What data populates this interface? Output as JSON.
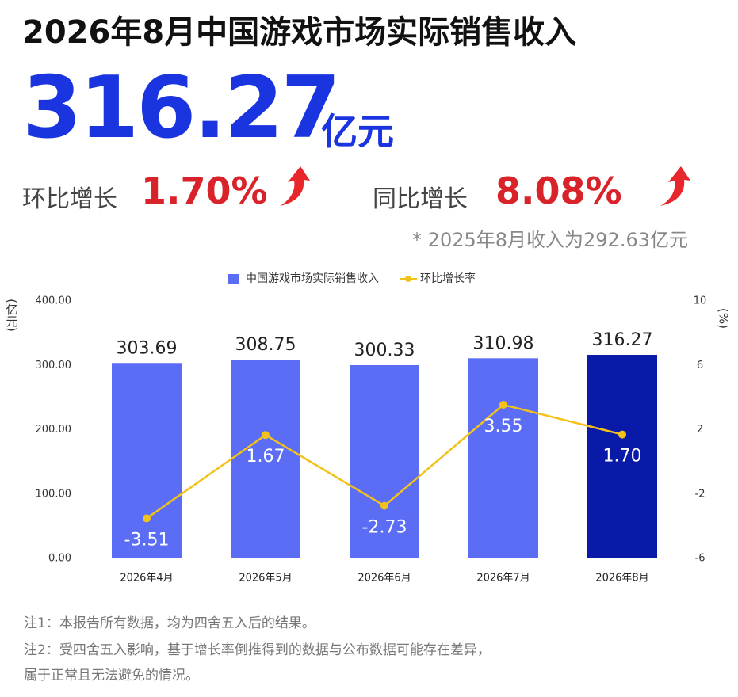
{
  "title": "2026年8月中国游戏市场实际销售收入",
  "headline": {
    "value": 316.27,
    "unit": "亿元"
  },
  "mom": {
    "label": "环比增长",
    "value": "1.70%"
  },
  "yoy": {
    "label": "同比增长",
    "value": "8.08%"
  },
  "prior_note": "* 2025年8月收入为292.63亿元",
  "notes": [
    "注1：本报告所有数据，均为四舍五入后的结果。",
    "注2：受四舍五入影响，基于增长率倒推得到的数据与公布数据可能存在差异，",
    "属于正常且无法避免的情况。"
  ],
  "chart_data": {
    "type": "combo",
    "categories": [
      "2026年4月",
      "2026年5月",
      "2026年6月",
      "2026年7月",
      "2026年8月"
    ],
    "series": [
      {
        "name": "中国游戏市场实际销售收入",
        "type": "bar",
        "color": "#5b6cf5",
        "colors": [
          "#5b6cf5",
          "#5b6cf5",
          "#5b6cf5",
          "#5b6cf5",
          "#0a1aa8"
        ],
        "values": [
          303.69,
          308.75,
          300.33,
          310.98,
          316.27
        ]
      },
      {
        "name": "环比增长率",
        "type": "line",
        "axis": "y2",
        "color": "#f2c21b",
        "values": [
          -3.51,
          1.67,
          -2.73,
          3.55,
          1.7
        ],
        "value_labels": [
          "-3.51",
          "1.67",
          "-2.73",
          "3.55",
          "1.70"
        ]
      }
    ],
    "y_label": "(亿元)",
    "y2_label": "(%)",
    "ylim": [
      0,
      400
    ],
    "yticks": [
      {
        "value": 0,
        "label": "0.00"
      },
      {
        "value": 100,
        "label": "100.00"
      },
      {
        "value": 200,
        "label": "200.00"
      },
      {
        "value": 300,
        "label": "300.00"
      },
      {
        "value": 400,
        "label": "400.00"
      }
    ],
    "y2lim": [
      -6,
      10
    ],
    "y2ticks": [
      -6,
      -2,
      2,
      6,
      10
    ],
    "legend": "top",
    "grid": false
  }
}
